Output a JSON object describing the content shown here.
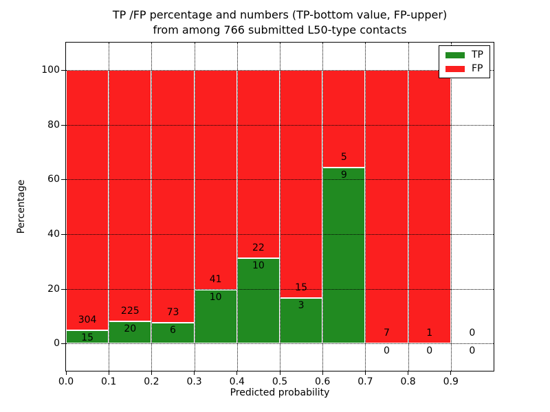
{
  "chart_data": {
    "type": "bar",
    "stacked": true,
    "title_lines": [
      "TP /FP percentage and numbers (TP-bottom value, FP-upper)",
      "from among 766 submitted L50-type contacts"
    ],
    "xlabel": "Predicted probability",
    "ylabel": "Percentage",
    "xlim": [
      0.0,
      1.0
    ],
    "ylim": [
      -10,
      110
    ],
    "xticks": [
      "0.0",
      "0.1",
      "0.2",
      "0.3",
      "0.4",
      "0.5",
      "0.6",
      "0.7",
      "0.8",
      "0.9"
    ],
    "yticks": [
      0,
      20,
      40,
      60,
      80,
      100
    ],
    "grid": true,
    "bin_width": 0.1,
    "total_submitted": 766,
    "categories": [
      "0.0-0.1",
      "0.1-0.2",
      "0.2-0.3",
      "0.3-0.4",
      "0.4-0.5",
      "0.5-0.6",
      "0.6-0.7",
      "0.7-0.8",
      "0.8-0.9",
      "0.9-1.0"
    ],
    "series": [
      {
        "name": "TP",
        "color": "#218a21",
        "counts": [
          15,
          20,
          6,
          10,
          10,
          3,
          9,
          0,
          0,
          0
        ],
        "percent_values": [
          4.7,
          8.16,
          7.59,
          19.61,
          31.25,
          16.67,
          64.29,
          0.0,
          0.0,
          0.0
        ]
      },
      {
        "name": "FP",
        "color": "#fb1f1f",
        "counts": [
          304,
          225,
          73,
          41,
          22,
          15,
          5,
          7,
          1,
          0
        ],
        "percent_values": [
          95.3,
          91.84,
          92.41,
          80.39,
          68.75,
          83.33,
          35.71,
          100.0,
          100.0,
          0.0
        ]
      }
    ],
    "legend": {
      "position": "upper right",
      "entries": [
        {
          "label": "TP",
          "color": "#218a21"
        },
        {
          "label": "FP",
          "color": "#fb1f1f"
        }
      ]
    }
  }
}
